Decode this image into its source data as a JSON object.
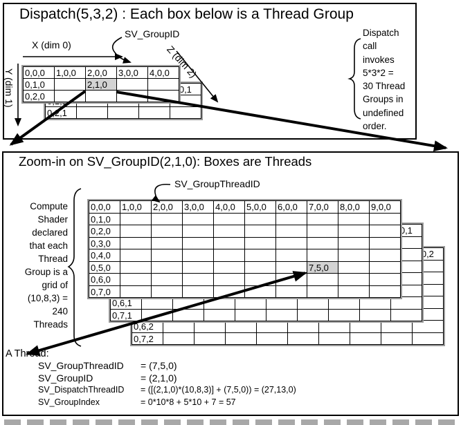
{
  "top": {
    "title": "Dispatch(5,3,2) : Each box below is a Thread Group",
    "axis_x": "X (dim 0)",
    "axis_y": "Y (dim 1)",
    "axis_z": "Z (dim 2)",
    "group_id_label": "SV_GroupID",
    "note_lines": [
      "Dispatch",
      "call",
      "invokes",
      "5*3*2 =",
      "30 Thread",
      "Groups in",
      "undefined",
      "order."
    ],
    "grid": {
      "layers": [
        {
          "z": 0,
          "cells": [
            {
              "r": 0,
              "c": 0,
              "t": "0,0,0"
            },
            {
              "r": 0,
              "c": 1,
              "t": "1,0,0"
            },
            {
              "r": 0,
              "c": 2,
              "t": "2,0,0"
            },
            {
              "r": 0,
              "c": 3,
              "t": "3,0,0"
            },
            {
              "r": 0,
              "c": 4,
              "t": "4,0,0"
            },
            {
              "r": 1,
              "c": 0,
              "t": "0,1,0"
            },
            {
              "r": 1,
              "c": 2,
              "t": "2,1,0",
              "shaded": true
            },
            {
              "r": 2,
              "c": 0,
              "t": "0,2,0"
            }
          ]
        },
        {
          "z": 1,
          "cells": [
            {
              "r": 0,
              "c": 4,
              "t": "4,0,1"
            },
            {
              "r": 1,
              "c": 0,
              "t": "0,1,1"
            },
            {
              "r": 2,
              "c": 0,
              "t": "0,2,1"
            }
          ]
        }
      ]
    }
  },
  "bottom": {
    "title": "Zoom-in on SV_GroupID(2,1,0): Boxes are Threads",
    "thread_id_label": "SV_GroupThreadID",
    "note_lines": [
      "Compute",
      "Shader",
      "declared",
      "that each",
      "Thread",
      "Group is a",
      "grid of",
      "(10,8,3) =",
      "240",
      "Threads"
    ],
    "grid": {
      "layers": [
        {
          "z": 0,
          "cells": [
            {
              "r": 0,
              "c": 0,
              "t": "0,0,0"
            },
            {
              "r": 0,
              "c": 1,
              "t": "1,0,0"
            },
            {
              "r": 0,
              "c": 2,
              "t": "2,0,0"
            },
            {
              "r": 0,
              "c": 3,
              "t": "3,0,0"
            },
            {
              "r": 0,
              "c": 4,
              "t": "4,0,0"
            },
            {
              "r": 0,
              "c": 5,
              "t": "5,0,0"
            },
            {
              "r": 0,
              "c": 6,
              "t": "6,0,0"
            },
            {
              "r": 0,
              "c": 7,
              "t": "7,0,0"
            },
            {
              "r": 0,
              "c": 8,
              "t": "8,0,0"
            },
            {
              "r": 0,
              "c": 9,
              "t": "9,0,0"
            },
            {
              "r": 1,
              "c": 0,
              "t": "0,1,0"
            },
            {
              "r": 2,
              "c": 0,
              "t": "0,2,0"
            },
            {
              "r": 3,
              "c": 0,
              "t": "0,3,0"
            },
            {
              "r": 4,
              "c": 0,
              "t": "0,4,0"
            },
            {
              "r": 5,
              "c": 0,
              "t": "0,5,0"
            },
            {
              "r": 6,
              "c": 0,
              "t": "0,6,0"
            },
            {
              "r": 7,
              "c": 0,
              "t": "0,7,0"
            },
            {
              "r": 5,
              "c": 7,
              "t": "7,5,0",
              "shaded": true
            }
          ]
        },
        {
          "z": 1,
          "cells": [
            {
              "r": 0,
              "c": 9,
              "t": "9,0,1"
            },
            {
              "r": 6,
              "c": 0,
              "t": "0,6,1"
            },
            {
              "r": 7,
              "c": 0,
              "t": "0,7,1"
            }
          ]
        },
        {
          "z": 2,
          "cells": [
            {
              "r": 0,
              "c": 9,
              "t": "9,0,2"
            },
            {
              "r": 6,
              "c": 0,
              "t": "0,6,2"
            },
            {
              "r": 7,
              "c": 0,
              "t": "0,7,2"
            }
          ]
        }
      ]
    }
  },
  "thread_info": {
    "heading": "A Thread:",
    "rows": [
      {
        "label": "SV_GroupThreadID",
        "value": "= (7,5,0)",
        "size": "big"
      },
      {
        "label": "SV_GroupID",
        "value": "= (2,1,0)",
        "size": "big"
      },
      {
        "label": "SV_DispatchThreadID",
        "value": "=  ([(2,1,0)*(10,8,3)] + (7,5,0)) = (27,13,0)",
        "size": "small"
      },
      {
        "label": "SV_GroupIndex",
        "value": "=  0*10*8 + 5*10 + 7 = 57",
        "size": "small"
      }
    ]
  },
  "colors": {
    "shaded_cell": "#d3d3d3",
    "grid_outline": "#9a9a9a",
    "line": "#000000"
  }
}
